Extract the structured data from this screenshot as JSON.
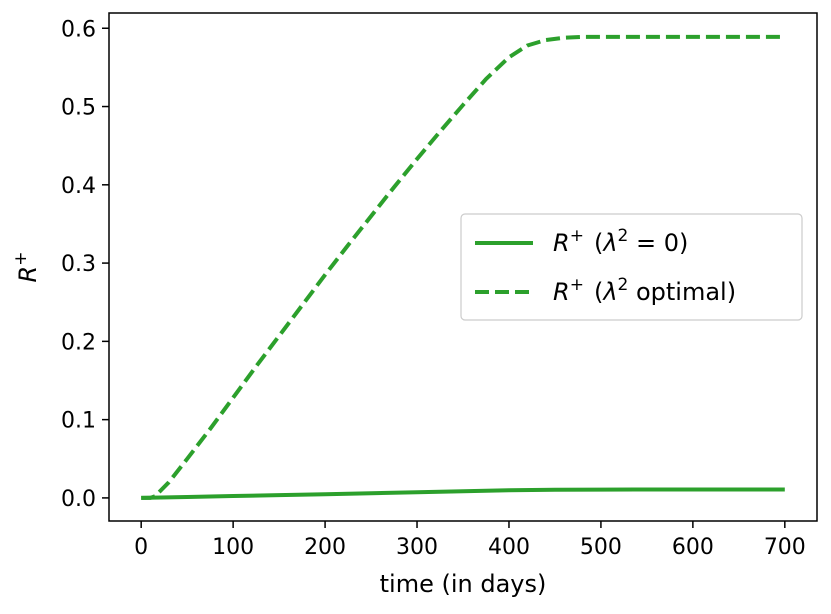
{
  "chart_data": {
    "type": "line",
    "xlabel": "time (in days)",
    "ylabel": "R⁺",
    "xlim": [
      -35,
      735
    ],
    "ylim": [
      -0.0295,
      0.6195
    ],
    "xticks": [
      0,
      100,
      200,
      300,
      400,
      500,
      600,
      700
    ],
    "yticks": [
      0.0,
      0.1,
      0.2,
      0.3,
      0.4,
      0.5,
      0.6
    ],
    "grid": false,
    "legend_position": "center-right",
    "series": [
      {
        "name": "R⁺ (λ² = 0)",
        "style": "solid",
        "color": "#2ca02c",
        "x": [
          0,
          50,
          100,
          150,
          200,
          250,
          300,
          350,
          400,
          450,
          500,
          550,
          600,
          650,
          700
        ],
        "y": [
          0.0,
          0.0012,
          0.0024,
          0.0036,
          0.0048,
          0.006,
          0.0072,
          0.0085,
          0.0098,
          0.0103,
          0.0106,
          0.0107,
          0.0108,
          0.0108,
          0.0108
        ]
      },
      {
        "name": "R⁺ (λ² optimal)",
        "style": "dashed",
        "color": "#2ca02c",
        "x": [
          0,
          10,
          15,
          20,
          30,
          50,
          75,
          100,
          125,
          150,
          175,
          200,
          225,
          250,
          275,
          300,
          325,
          350,
          375,
          400,
          420,
          440,
          460,
          480,
          500,
          550,
          600,
          650,
          700
        ],
        "y": [
          0.0,
          0.0,
          0.002,
          0.008,
          0.02,
          0.05,
          0.088,
          0.128,
          0.168,
          0.207,
          0.246,
          0.285,
          0.323,
          0.36,
          0.397,
          0.433,
          0.468,
          0.502,
          0.535,
          0.563,
          0.578,
          0.585,
          0.588,
          0.589,
          0.589,
          0.589,
          0.589,
          0.589,
          0.589
        ]
      }
    ]
  },
  "legend": {
    "entries": [
      {
        "r_label": "R",
        "sup_plus": "+",
        "paren_open": "(",
        "lambda": "λ",
        "sup_two": "2",
        "rest": " = 0)"
      },
      {
        "r_label": "R",
        "sup_plus": "+",
        "paren_open": "(",
        "lambda": "λ",
        "sup_two": "2",
        "rest": " optimal)"
      }
    ]
  },
  "ylabel_parts": {
    "r": "R",
    "sup": "+"
  }
}
